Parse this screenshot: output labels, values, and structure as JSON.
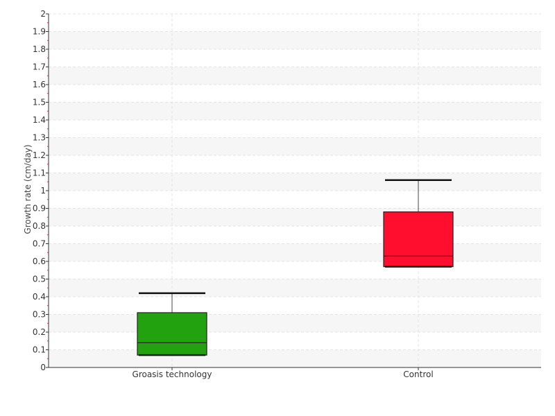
{
  "chart_data": {
    "type": "boxplot",
    "ylabel": "Growth rate (cm/day)",
    "xlabel": "",
    "ylim": [
      0,
      2
    ],
    "yticks": [
      "0",
      "0.1",
      "0.2",
      "0.3",
      "0.4",
      "0.5",
      "0.6",
      "0.7",
      "0.8",
      "0.9",
      "1",
      "1.1",
      "1.2",
      "1.3",
      "1.4",
      "1.5",
      "1.6",
      "1.7",
      "1.8",
      "1.9",
      "2"
    ],
    "grid": true,
    "categories": [
      "Groasis technology",
      "Control"
    ],
    "boxes": [
      {
        "category": "Groasis technology",
        "min": 0.07,
        "q1": 0.07,
        "median": 0.14,
        "q3": 0.31,
        "max": 0.42,
        "color": "#22a20e"
      },
      {
        "category": "Control",
        "min": 0.57,
        "q1": 0.57,
        "median": 0.63,
        "q3": 0.88,
        "max": 1.06,
        "color": "#ff0f2d"
      }
    ]
  }
}
